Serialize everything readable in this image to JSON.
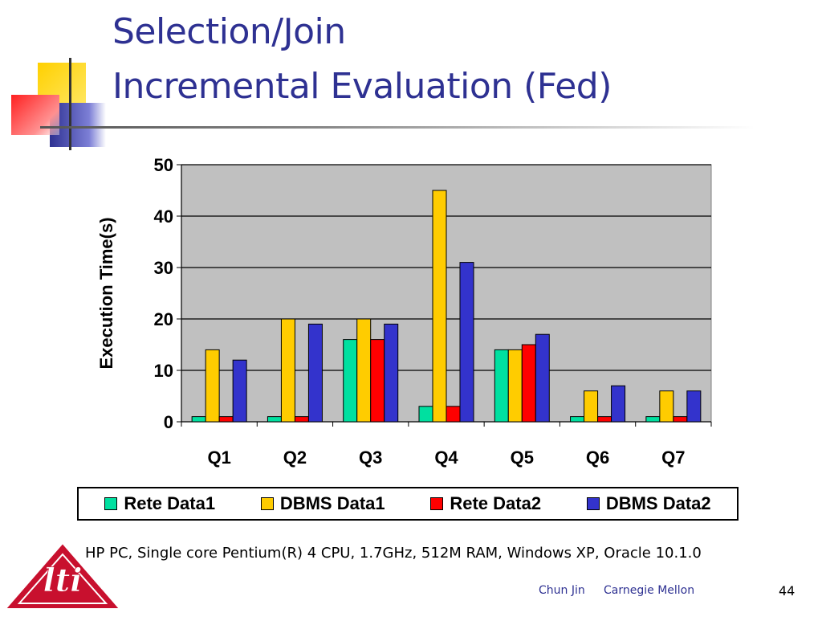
{
  "slide": {
    "title_line1": "Selection/Join",
    "title_line2": "Incremental Evaluation (Fed)",
    "caption": "HP PC, Single core Pentium(R) 4 CPU, 1.7GHz, 512M RAM, Windows XP, Oracle 10.1.0",
    "footer_author": "Chun Jin",
    "footer_org": "Carnegie Mellon",
    "page_number": "44",
    "logo_text": "lti"
  },
  "chart_data": {
    "type": "bar",
    "categories": [
      "Q1",
      "Q2",
      "Q3",
      "Q4",
      "Q5",
      "Q6",
      "Q7"
    ],
    "series": [
      {
        "name": "Rete Data1",
        "color": "#00e0a0",
        "values": [
          1,
          1,
          16,
          3,
          14,
          1,
          1
        ]
      },
      {
        "name": "DBMS Data1",
        "color": "#ffcc00",
        "values": [
          14,
          20,
          20,
          45,
          14,
          6,
          6
        ]
      },
      {
        "name": "Rete Data2",
        "color": "#ff0000",
        "values": [
          1,
          1,
          16,
          3,
          15,
          1,
          1
        ]
      },
      {
        "name": "DBMS Data2",
        "color": "#3333cc",
        "values": [
          12,
          19,
          19,
          31,
          17,
          7,
          6
        ]
      }
    ],
    "ylabel": "Execution Time(s)",
    "xlabel": "",
    "ylim": [
      0,
      50
    ],
    "yticks": [
      "0",
      "10",
      "20",
      "30",
      "40",
      "50"
    ],
    "grid": true,
    "plot_background": "#c0c0c0",
    "legend_position": "bottom"
  }
}
